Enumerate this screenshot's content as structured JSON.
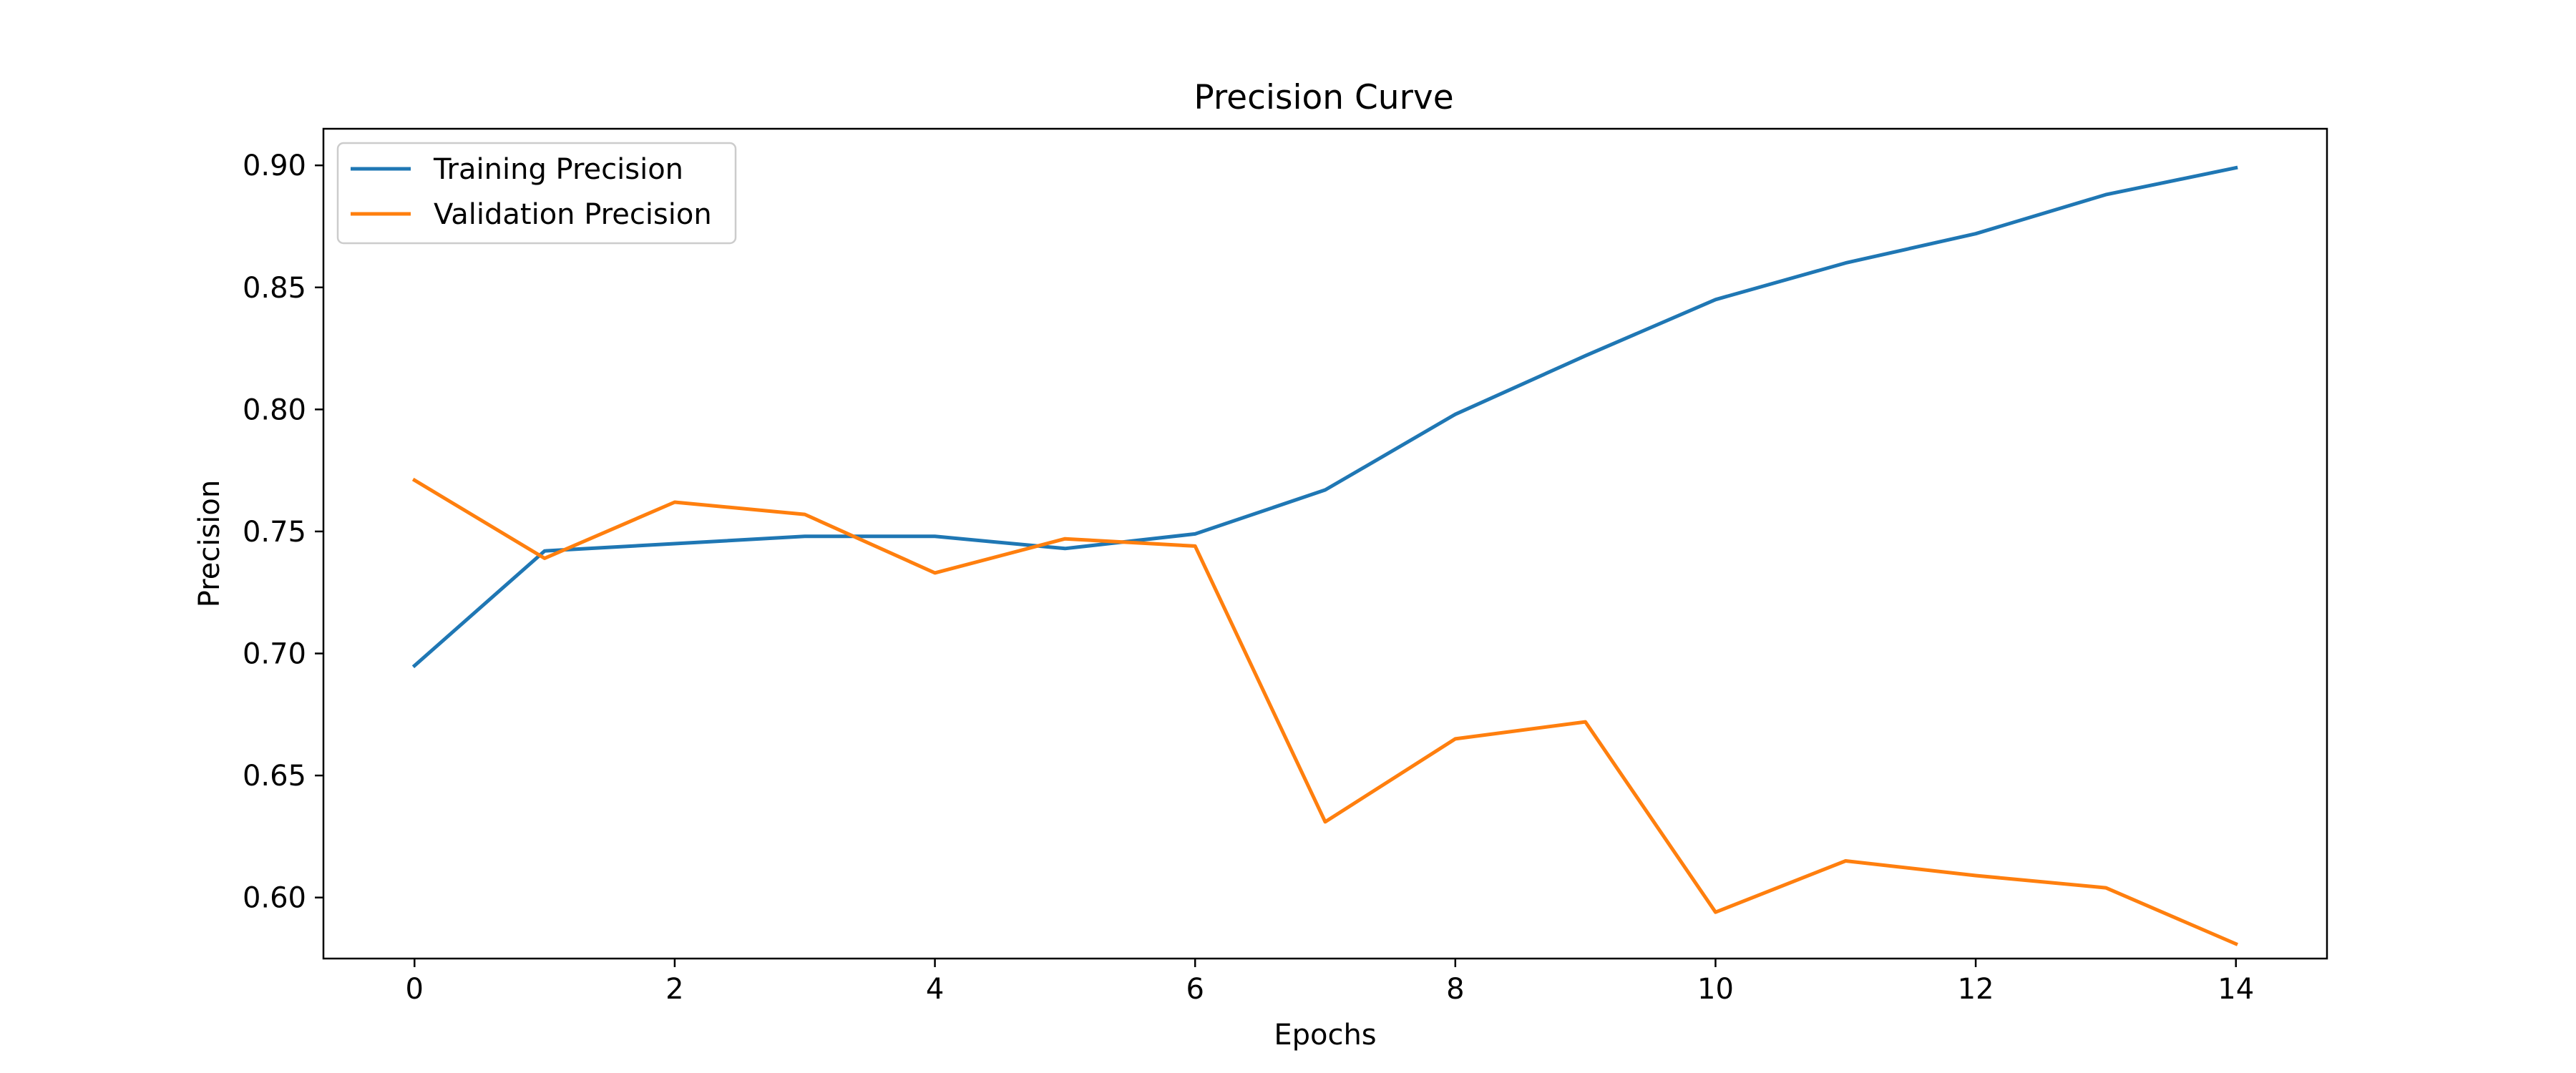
{
  "chart_data": {
    "type": "line",
    "title": "Precision Curve",
    "xlabel": "Epochs",
    "ylabel": "Precision",
    "x": [
      0,
      1,
      2,
      3,
      4,
      5,
      6,
      7,
      8,
      9,
      10,
      11,
      12,
      13,
      14
    ],
    "xlim": [
      -0.7,
      14.7
    ],
    "ylim": [
      0.575,
      0.915
    ],
    "xticks": [
      0,
      2,
      4,
      6,
      8,
      10,
      12,
      14
    ],
    "xtick_labels": [
      "0",
      "2",
      "4",
      "6",
      "8",
      "10",
      "12",
      "14"
    ],
    "yticks": [
      0.6,
      0.65,
      0.7,
      0.75,
      0.8,
      0.85,
      0.9
    ],
    "ytick_labels": [
      "0.60",
      "0.65",
      "0.70",
      "0.75",
      "0.80",
      "0.85",
      "0.90"
    ],
    "grid": false,
    "legend_position": "upper-left",
    "series": [
      {
        "name": "Training Precision",
        "color": "#1f77b4",
        "values": [
          0.695,
          0.742,
          0.745,
          0.748,
          0.748,
          0.743,
          0.749,
          0.767,
          0.798,
          0.822,
          0.845,
          0.86,
          0.872,
          0.888,
          0.899
        ]
      },
      {
        "name": "Validation Precision",
        "color": "#ff7f0e",
        "values": [
          0.771,
          0.739,
          0.762,
          0.757,
          0.733,
          0.747,
          0.744,
          0.631,
          0.665,
          0.672,
          0.594,
          0.615,
          0.609,
          0.604,
          0.581
        ]
      }
    ]
  }
}
